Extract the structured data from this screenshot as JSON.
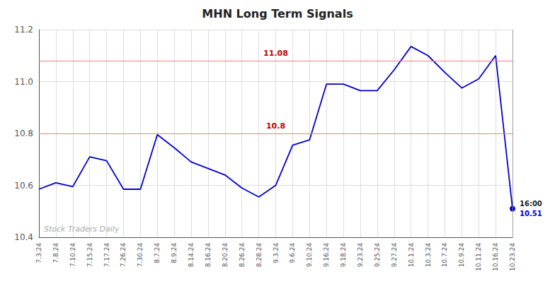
{
  "chart_data": {
    "type": "line",
    "title": "MHN Long Term Signals",
    "categories": [
      "7.3.24",
      "7.8.24",
      "7.10.24",
      "7.15.24",
      "7.17.24",
      "7.26.24",
      "7.30.24",
      "8.7.24",
      "8.9.24",
      "8.14.24",
      "8.16.24",
      "8.20.24",
      "8.26.24",
      "8.28.24",
      "9.3.24",
      "9.6.24",
      "9.10.24",
      "9.16.24",
      "9.18.24",
      "9.23.24",
      "9.25.24",
      "9.27.24",
      "10.1.24",
      "10.3.24",
      "10.7.24",
      "10.9.24",
      "10.11.24",
      "10.16.24",
      "10.23.24"
    ],
    "values": [
      10.585,
      10.61,
      10.595,
      10.71,
      10.695,
      10.585,
      10.585,
      10.795,
      10.745,
      10.69,
      10.665,
      10.64,
      10.59,
      10.555,
      10.6,
      10.755,
      10.775,
      10.99,
      10.99,
      10.965,
      10.965,
      11.045,
      11.135,
      11.1,
      11.035,
      10.975,
      11.01,
      11.1,
      10.51
    ],
    "color": "#0000cc",
    "ylim": [
      10.4,
      11.2
    ],
    "yticks": [
      10.4,
      10.6,
      10.8,
      {
        "value": 11.0,
        "label": "11.0"
      },
      11.2
    ],
    "grid": true,
    "annotations": [
      {
        "type": "hline",
        "value": 11.08,
        "label": "11.08",
        "color": "#f08080",
        "label_color": "#cc0000"
      },
      {
        "type": "hline",
        "value": 10.8,
        "label": "10.8",
        "color": "#f08080",
        "label_color": "#cc0000"
      },
      {
        "type": "vline",
        "x": "10.23.24"
      },
      {
        "type": "point",
        "x": "10.23.24",
        "value": 10.51,
        "label": "10.51",
        "time_label": "16:00",
        "color": "#0000cc"
      },
      {
        "type": "text",
        "text": "Stock Traders Daily",
        "color": "#aaaaaa"
      }
    ]
  }
}
